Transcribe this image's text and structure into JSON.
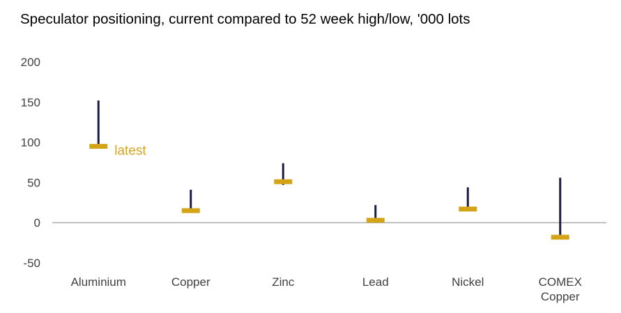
{
  "chart_data": {
    "type": "range",
    "title": "Speculator positioning, current compared to 52 week high/low, '000 lots",
    "ylim": [
      -50,
      200
    ],
    "yticks": [
      "200",
      "150",
      "100",
      "50",
      "0",
      "-50"
    ],
    "ytick_values": [
      200,
      150,
      100,
      50,
      0,
      -50
    ],
    "grid": false,
    "categories": [
      [
        "Aluminium"
      ],
      [
        "Copper"
      ],
      [
        "Zinc"
      ],
      [
        "Lead"
      ],
      [
        "Nickel"
      ],
      [
        "COMEX",
        "Copper"
      ]
    ],
    "series": [
      {
        "values": [
          152,
          41,
          74,
          22,
          44,
          56
        ]
      },
      {
        "values": [
          95,
          15,
          47,
          3,
          17,
          -18
        ]
      },
      {
        "name": "latest",
        "values": [
          95,
          15,
          51,
          3,
          17,
          -18
        ]
      }
    ],
    "annotation": {
      "text": "latest",
      "category_index": 0
    },
    "colors": {
      "range": "#1b1a47",
      "latest": "#d4a418",
      "axis": "#a6a6a6",
      "text": "#404040"
    }
  }
}
